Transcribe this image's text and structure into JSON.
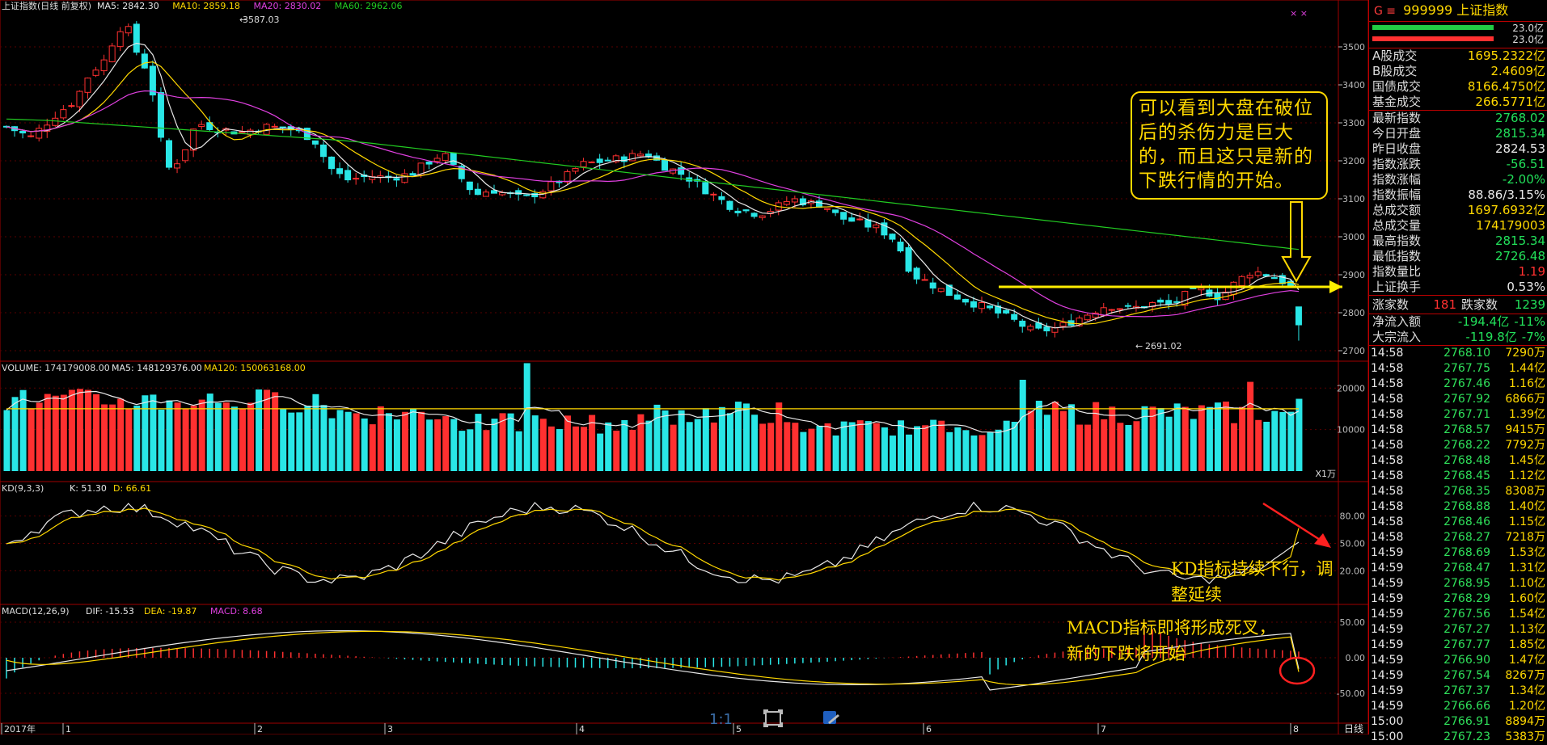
{
  "main_panel": {
    "title": "上证指数(日线 前复权)",
    "ma": [
      {
        "label": "MA5: 2842.30",
        "color": "#e8e8e8"
      },
      {
        "label": "MA10: 2859.18",
        "color": "#ffd800"
      },
      {
        "label": "MA20: 2830.02",
        "color": "#e040e0"
      },
      {
        "label": "MA60: 2962.06",
        "color": "#22cc22"
      }
    ],
    "high_label": "3587.03",
    "low_label": "2691.02",
    "price_ticks": [
      "3500",
      "3400",
      "3300",
      "3200",
      "3100",
      "3000",
      "2900",
      "2800",
      "2700"
    ],
    "top_icons": "× ×"
  },
  "volume_panel": {
    "title": "VOLUME: 174179008.00",
    "ma5": "MA5: 148129376.00",
    "ma120": "MA120: 150063168.00",
    "ticks": [
      "20000",
      "10000"
    ],
    "unit": "X1万"
  },
  "kd_panel": {
    "title": "KD(9,3,3)",
    "k": "K: 51.30",
    "d": "D: 66.61",
    "ticks": [
      "80.00",
      "50.00",
      "20.00"
    ]
  },
  "macd_panel": {
    "title": "MACD(12,26,9)",
    "dif": "DIF: -15.53",
    "dea": "DEA: -19.87",
    "macd": "MACD: 8.68",
    "ticks": [
      "50.00",
      "0.00",
      "-50.00"
    ]
  },
  "x_axis": {
    "labels": [
      "2017年",
      "1",
      "2",
      "3",
      "4",
      "5",
      "6",
      "7",
      "8"
    ],
    "period": "日线"
  },
  "toolbar": {
    "zoom_label": "1:1"
  },
  "annotations": {
    "box": [
      "可以看到大盘在破位",
      "后的杀伤力是巨大",
      "的，而且这只是新的",
      "下跌行情的开始。"
    ],
    "kd": [
      "KD指标持续下行，调",
      "整延续"
    ],
    "macd": [
      "MACD指标即将形成死叉，",
      "新的下跌将开始"
    ]
  },
  "quote": {
    "header_mark": "G ≡",
    "code": "999999",
    "name": "上证指数",
    "bars": [
      {
        "label": "23.0亿",
        "color": "#22cc44"
      },
      {
        "label": "23.0亿",
        "color": "#ff3030"
      }
    ],
    "turnover": [
      {
        "k": "A股成交",
        "v": "1695.2322亿"
      },
      {
        "k": "B股成交",
        "v": "2.4609亿"
      },
      {
        "k": "国债成交",
        "v": "8166.4750亿"
      },
      {
        "k": "基金成交",
        "v": "266.5771亿"
      }
    ],
    "stats": [
      {
        "k": "最新指数",
        "v": "2768.02",
        "c": "#22e05a"
      },
      {
        "k": "今日开盘",
        "v": "2815.34",
        "c": "#22e05a"
      },
      {
        "k": "昨日收盘",
        "v": "2824.53",
        "c": "#e8e8e8"
      },
      {
        "k": "指数涨跌",
        "v": "-56.51",
        "c": "#22e05a"
      },
      {
        "k": "指数涨幅",
        "v": "-2.00%",
        "c": "#22e05a"
      },
      {
        "k": "指数振幅",
        "v": "88.86/3.15%",
        "c": "#e8e8e8"
      },
      {
        "k": "总成交额",
        "v": "1697.6932亿",
        "c": "#ffd800"
      },
      {
        "k": "总成交量",
        "v": "174179003",
        "c": "#ffd800"
      },
      {
        "k": "最高指数",
        "v": "2815.34",
        "c": "#22e05a"
      },
      {
        "k": "最低指数",
        "v": "2726.48",
        "c": "#22e05a"
      },
      {
        "k": "指数量比",
        "v": "1.19",
        "c": "#ff3030"
      },
      {
        "k": "上证换手",
        "v": "0.53%",
        "c": "#e8e8e8"
      }
    ],
    "up_label": "涨家数",
    "up_val": "181",
    "down_label": "跌家数",
    "down_val": "1239",
    "flows": [
      {
        "k": "净流入额",
        "v": "-194.4亿",
        "p": "-11%"
      },
      {
        "k": "大宗流入",
        "v": "-119.8亿",
        "p": "-7%"
      }
    ],
    "ticks": [
      {
        "t": "14:58",
        "p": "2768.10",
        "v": "7290万"
      },
      {
        "t": "14:58",
        "p": "2767.75",
        "v": "1.44亿"
      },
      {
        "t": "14:58",
        "p": "2767.46",
        "v": "1.16亿"
      },
      {
        "t": "14:58",
        "p": "2767.92",
        "v": "6866万"
      },
      {
        "t": "14:58",
        "p": "2767.71",
        "v": "1.39亿"
      },
      {
        "t": "14:58",
        "p": "2768.57",
        "v": "9415万"
      },
      {
        "t": "14:58",
        "p": "2768.22",
        "v": "7792万"
      },
      {
        "t": "14:58",
        "p": "2768.48",
        "v": "1.45亿"
      },
      {
        "t": "14:58",
        "p": "2768.45",
        "v": "1.12亿"
      },
      {
        "t": "14:58",
        "p": "2768.35",
        "v": "8308万"
      },
      {
        "t": "14:58",
        "p": "2768.88",
        "v": "1.40亿"
      },
      {
        "t": "14:58",
        "p": "2768.46",
        "v": "1.15亿"
      },
      {
        "t": "14:58",
        "p": "2768.27",
        "v": "7218万"
      },
      {
        "t": "14:59",
        "p": "2768.69",
        "v": "1.53亿"
      },
      {
        "t": "14:59",
        "p": "2768.47",
        "v": "1.31亿"
      },
      {
        "t": "14:59",
        "p": "2768.95",
        "v": "1.10亿"
      },
      {
        "t": "14:59",
        "p": "2768.29",
        "v": "1.60亿"
      },
      {
        "t": "14:59",
        "p": "2767.56",
        "v": "1.54亿"
      },
      {
        "t": "14:59",
        "p": "2767.27",
        "v": "1.13亿"
      },
      {
        "t": "14:59",
        "p": "2767.77",
        "v": "1.85亿"
      },
      {
        "t": "14:59",
        "p": "2766.90",
        "v": "1.47亿"
      },
      {
        "t": "14:59",
        "p": "2767.54",
        "v": "8267万"
      },
      {
        "t": "14:59",
        "p": "2767.37",
        "v": "1.34亿"
      },
      {
        "t": "14:59",
        "p": "2766.66",
        "v": "1.20亿"
      },
      {
        "t": "15:00",
        "p": "2766.91",
        "v": "8894万"
      },
      {
        "t": "15:00",
        "p": "2767.23",
        "v": "5383万"
      }
    ]
  }
}
